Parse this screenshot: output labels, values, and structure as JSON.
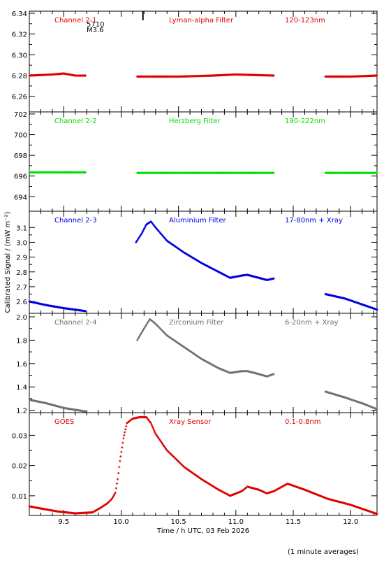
{
  "figure": {
    "xlabel": "Time / h UTC, 03 Feb 2026",
    "ylabel": "Calibrated Signal / (mW m⁻²)",
    "footnote": "(1 minute averages)",
    "flare_label_1": "5710",
    "flare_label_2": "M3.6",
    "colors": {
      "red": "#e00000",
      "green": "#00e000",
      "blue": "#0000e0",
      "grey": "#707070",
      "axis": "#000000"
    }
  },
  "chart_data": [
    {
      "type": "scatter",
      "title": "Channel 2-1",
      "filter": "Lyman-alpha Filter",
      "band": "120-123nm",
      "color": "#e00000",
      "xlim": [
        9.2,
        12.23
      ],
      "ylim": [
        6.245,
        6.342
      ],
      "yticks": [
        6.26,
        6.28,
        6.3,
        6.32,
        6.34
      ],
      "ytick_labels": [
        "6.26",
        "6.28",
        "6.30",
        "6.32",
        "6.34"
      ],
      "series": [
        {
          "segments": [
            {
              "x": [
                9.2,
                9.4,
                9.5,
                9.6,
                9.69
              ],
              "y": [
                6.28,
                6.281,
                6.282,
                6.28,
                6.28
              ]
            },
            {
              "x": [
                10.14,
                10.5,
                10.8,
                11.0,
                11.33
              ],
              "y": [
                6.279,
                6.279,
                6.28,
                6.281,
                6.28
              ]
            },
            {
              "x": [
                11.78,
                12.0,
                12.23
              ],
              "y": [
                6.279,
                6.279,
                6.28
              ]
            }
          ]
        }
      ]
    },
    {
      "type": "scatter",
      "title": "Channel 2-2",
      "filter": "Herzberg Filter",
      "band": "190-222nm",
      "color": "#00e000",
      "xlim": [
        9.2,
        12.23
      ],
      "ylim": [
        692.6,
        702.2
      ],
      "yticks": [
        694,
        696,
        698,
        700,
        702
      ],
      "ytick_labels": [
        "694",
        "696",
        "698",
        "700",
        "702"
      ],
      "series": [
        {
          "segments": [
            {
              "x": [
                9.2,
                9.69
              ],
              "y": [
                696.35,
                696.35
              ]
            },
            {
              "x": [
                10.14,
                11.33
              ],
              "y": [
                696.3,
                696.3
              ]
            },
            {
              "x": [
                11.78,
                12.23
              ],
              "y": [
                696.3,
                696.3
              ]
            }
          ]
        }
      ]
    },
    {
      "type": "scatter",
      "title": "Channel 2-3",
      "filter": "Aluminium Filter",
      "band": "17-80nm + Xray",
      "color": "#0000e0",
      "xlim": [
        9.2,
        12.23
      ],
      "ylim": [
        2.52,
        3.21
      ],
      "yticks": [
        2.6,
        2.7,
        2.8,
        2.9,
        3.0,
        3.1
      ],
      "ytick_labels": [
        "2.6",
        "2.7",
        "2.8",
        "2.9",
        "3.0",
        "3.1"
      ],
      "series": [
        {
          "segments": [
            {
              "x": [
                9.2,
                9.35,
                9.5,
                9.69
              ],
              "y": [
                2.6,
                2.575,
                2.555,
                2.535
              ]
            },
            {
              "x": [
                10.13,
                10.18,
                10.22,
                10.26,
                10.3,
                10.4,
                10.55,
                10.7,
                10.85,
                10.95,
                11.05,
                11.1,
                11.2,
                11.27,
                11.33
              ],
              "y": [
                3.0,
                3.06,
                3.12,
                3.14,
                3.1,
                3.01,
                2.93,
                2.86,
                2.8,
                2.76,
                2.775,
                2.78,
                2.76,
                2.745,
                2.755
              ]
            },
            {
              "x": [
                11.78,
                11.95,
                12.1,
                12.23
              ],
              "y": [
                2.65,
                2.62,
                2.58,
                2.545
              ]
            }
          ]
        }
      ]
    },
    {
      "type": "scatter",
      "title": "Channel 2-4",
      "filter": "Zirconium Filter",
      "band": "6-20nm + Xray",
      "color": "#707070",
      "xlim": [
        9.2,
        12.23
      ],
      "ylim": [
        1.18,
        2.03
      ],
      "yticks": [
        1.2,
        1.4,
        1.6,
        1.8,
        2.0
      ],
      "ytick_labels": [
        "1.2",
        "1.4",
        "1.6",
        "1.8",
        "2.0"
      ],
      "series": [
        {
          "segments": [
            {
              "x": [
                9.2,
                9.35,
                9.5,
                9.69
              ],
              "y": [
                1.29,
                1.26,
                1.22,
                1.19
              ]
            },
            {
              "x": [
                10.14,
                10.2,
                10.25,
                10.3,
                10.4,
                10.55,
                10.7,
                10.85,
                10.95,
                11.05,
                11.1,
                11.2,
                11.27,
                11.33
              ],
              "y": [
                1.8,
                1.9,
                1.98,
                1.94,
                1.84,
                1.74,
                1.64,
                1.56,
                1.52,
                1.535,
                1.535,
                1.51,
                1.49,
                1.51
              ]
            },
            {
              "x": [
                11.78,
                11.95,
                12.1,
                12.23
              ],
              "y": [
                1.36,
                1.31,
                1.26,
                1.21
              ]
            }
          ]
        }
      ]
    },
    {
      "type": "scatter",
      "title": "GOES",
      "filter": "Xray Sensor",
      "band": "0.1-0.8nm",
      "color": "#e00000",
      "xlim": [
        9.2,
        12.23
      ],
      "ylim": [
        0.0035,
        0.0375
      ],
      "yticks": [
        0.01,
        0.02,
        0.03
      ],
      "ytick_labels": [
        "0.01",
        "0.02",
        "0.03"
      ],
      "xticks": [
        9.5,
        10.0,
        10.5,
        11.0,
        11.5,
        12.0
      ],
      "xtick_labels": [
        "9.5",
        "10.0",
        "10.5",
        "11.0",
        "11.5",
        "12.0"
      ],
      "series": [
        {
          "segments": [
            {
              "x": [
                9.2,
                9.3,
                9.45,
                9.6,
                9.75,
                9.82,
                9.88,
                9.92,
                9.95,
                9.97,
                9.99,
                10.02,
                10.05,
                10.1,
                10.16,
                10.22,
                10.26,
                10.3,
                10.4,
                10.55,
                10.7,
                10.85,
                10.95,
                11.05,
                11.1,
                11.2,
                11.27,
                11.33,
                11.45,
                11.6,
                11.8,
                12.0,
                12.23
              ],
              "y": [
                0.0065,
                0.0058,
                0.0048,
                0.0042,
                0.0045,
                0.006,
                0.0075,
                0.009,
                0.011,
                0.0155,
                0.0215,
                0.029,
                0.034,
                0.0355,
                0.036,
                0.036,
                0.034,
                0.0305,
                0.025,
                0.0195,
                0.0155,
                0.012,
                0.01,
                0.0115,
                0.013,
                0.012,
                0.0108,
                0.0115,
                0.014,
                0.012,
                0.009,
                0.007,
                0.004
              ]
            }
          ]
        }
      ]
    }
  ]
}
